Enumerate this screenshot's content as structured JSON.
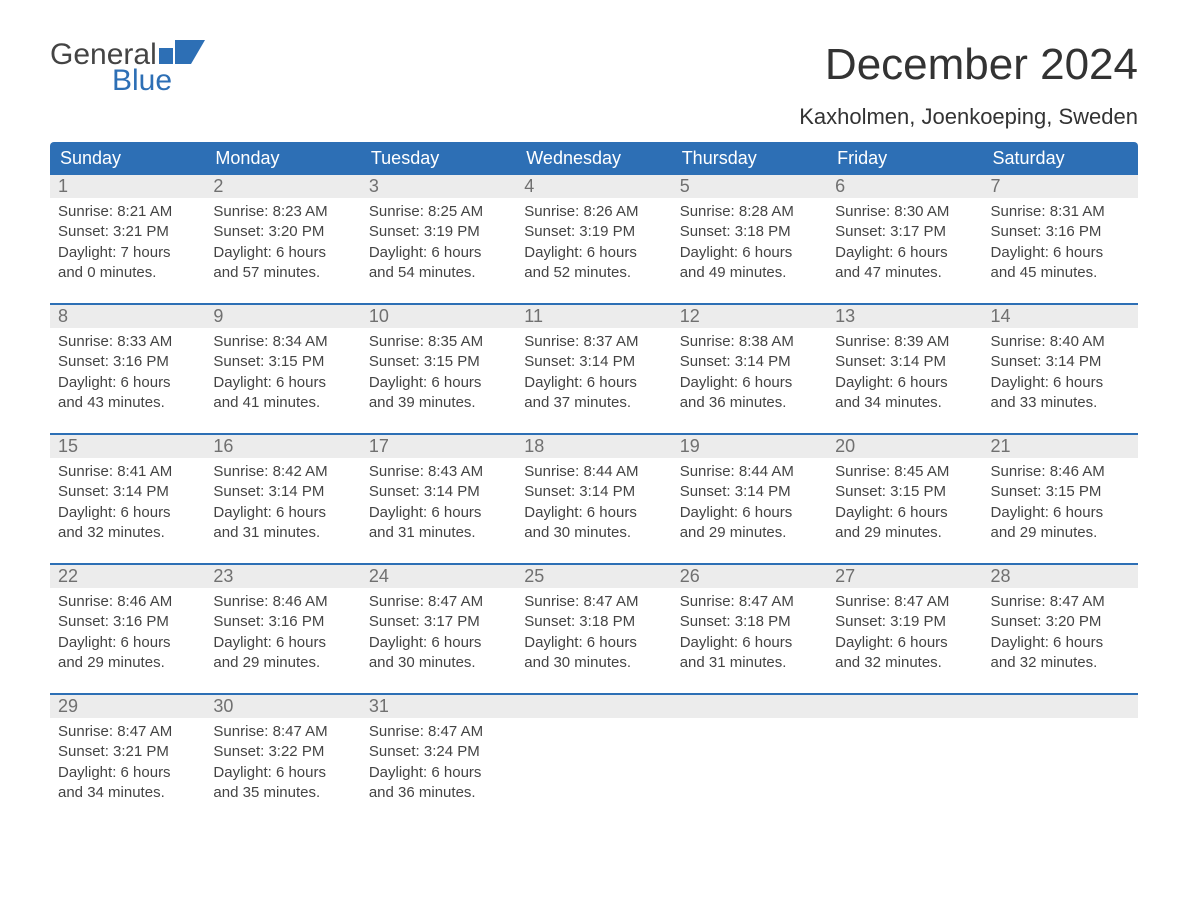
{
  "brand": {
    "general": "General",
    "blue": "Blue",
    "flag_color": "#2d6fb5"
  },
  "header": {
    "month_title": "December 2024",
    "location": "Kaxholmen, Joenkoeping, Sweden"
  },
  "colors": {
    "header_bg": "#2d6fb5",
    "header_text": "#ffffff",
    "day_number_bg": "#ececec",
    "day_number_text": "#707070",
    "body_text": "#444444",
    "week_border": "#2d6fb5",
    "page_bg": "#ffffff"
  },
  "weekdays": [
    "Sunday",
    "Monday",
    "Tuesday",
    "Wednesday",
    "Thursday",
    "Friday",
    "Saturday"
  ],
  "weeks": [
    [
      {
        "n": "1",
        "sunrise": "8:21 AM",
        "sunset": "3:21 PM",
        "dl1": "7 hours",
        "dl2": "and 0 minutes."
      },
      {
        "n": "2",
        "sunrise": "8:23 AM",
        "sunset": "3:20 PM",
        "dl1": "6 hours",
        "dl2": "and 57 minutes."
      },
      {
        "n": "3",
        "sunrise": "8:25 AM",
        "sunset": "3:19 PM",
        "dl1": "6 hours",
        "dl2": "and 54 minutes."
      },
      {
        "n": "4",
        "sunrise": "8:26 AM",
        "sunset": "3:19 PM",
        "dl1": "6 hours",
        "dl2": "and 52 minutes."
      },
      {
        "n": "5",
        "sunrise": "8:28 AM",
        "sunset": "3:18 PM",
        "dl1": "6 hours",
        "dl2": "and 49 minutes."
      },
      {
        "n": "6",
        "sunrise": "8:30 AM",
        "sunset": "3:17 PM",
        "dl1": "6 hours",
        "dl2": "and 47 minutes."
      },
      {
        "n": "7",
        "sunrise": "8:31 AM",
        "sunset": "3:16 PM",
        "dl1": "6 hours",
        "dl2": "and 45 minutes."
      }
    ],
    [
      {
        "n": "8",
        "sunrise": "8:33 AM",
        "sunset": "3:16 PM",
        "dl1": "6 hours",
        "dl2": "and 43 minutes."
      },
      {
        "n": "9",
        "sunrise": "8:34 AM",
        "sunset": "3:15 PM",
        "dl1": "6 hours",
        "dl2": "and 41 minutes."
      },
      {
        "n": "10",
        "sunrise": "8:35 AM",
        "sunset": "3:15 PM",
        "dl1": "6 hours",
        "dl2": "and 39 minutes."
      },
      {
        "n": "11",
        "sunrise": "8:37 AM",
        "sunset": "3:14 PM",
        "dl1": "6 hours",
        "dl2": "and 37 minutes."
      },
      {
        "n": "12",
        "sunrise": "8:38 AM",
        "sunset": "3:14 PM",
        "dl1": "6 hours",
        "dl2": "and 36 minutes."
      },
      {
        "n": "13",
        "sunrise": "8:39 AM",
        "sunset": "3:14 PM",
        "dl1": "6 hours",
        "dl2": "and 34 minutes."
      },
      {
        "n": "14",
        "sunrise": "8:40 AM",
        "sunset": "3:14 PM",
        "dl1": "6 hours",
        "dl2": "and 33 minutes."
      }
    ],
    [
      {
        "n": "15",
        "sunrise": "8:41 AM",
        "sunset": "3:14 PM",
        "dl1": "6 hours",
        "dl2": "and 32 minutes."
      },
      {
        "n": "16",
        "sunrise": "8:42 AM",
        "sunset": "3:14 PM",
        "dl1": "6 hours",
        "dl2": "and 31 minutes."
      },
      {
        "n": "17",
        "sunrise": "8:43 AM",
        "sunset": "3:14 PM",
        "dl1": "6 hours",
        "dl2": "and 31 minutes."
      },
      {
        "n": "18",
        "sunrise": "8:44 AM",
        "sunset": "3:14 PM",
        "dl1": "6 hours",
        "dl2": "and 30 minutes."
      },
      {
        "n": "19",
        "sunrise": "8:44 AM",
        "sunset": "3:14 PM",
        "dl1": "6 hours",
        "dl2": "and 29 minutes."
      },
      {
        "n": "20",
        "sunrise": "8:45 AM",
        "sunset": "3:15 PM",
        "dl1": "6 hours",
        "dl2": "and 29 minutes."
      },
      {
        "n": "21",
        "sunrise": "8:46 AM",
        "sunset": "3:15 PM",
        "dl1": "6 hours",
        "dl2": "and 29 minutes."
      }
    ],
    [
      {
        "n": "22",
        "sunrise": "8:46 AM",
        "sunset": "3:16 PM",
        "dl1": "6 hours",
        "dl2": "and 29 minutes."
      },
      {
        "n": "23",
        "sunrise": "8:46 AM",
        "sunset": "3:16 PM",
        "dl1": "6 hours",
        "dl2": "and 29 minutes."
      },
      {
        "n": "24",
        "sunrise": "8:47 AM",
        "sunset": "3:17 PM",
        "dl1": "6 hours",
        "dl2": "and 30 minutes."
      },
      {
        "n": "25",
        "sunrise": "8:47 AM",
        "sunset": "3:18 PM",
        "dl1": "6 hours",
        "dl2": "and 30 minutes."
      },
      {
        "n": "26",
        "sunrise": "8:47 AM",
        "sunset": "3:18 PM",
        "dl1": "6 hours",
        "dl2": "and 31 minutes."
      },
      {
        "n": "27",
        "sunrise": "8:47 AM",
        "sunset": "3:19 PM",
        "dl1": "6 hours",
        "dl2": "and 32 minutes."
      },
      {
        "n": "28",
        "sunrise": "8:47 AM",
        "sunset": "3:20 PM",
        "dl1": "6 hours",
        "dl2": "and 32 minutes."
      }
    ],
    [
      {
        "n": "29",
        "sunrise": "8:47 AM",
        "sunset": "3:21 PM",
        "dl1": "6 hours",
        "dl2": "and 34 minutes."
      },
      {
        "n": "30",
        "sunrise": "8:47 AM",
        "sunset": "3:22 PM",
        "dl1": "6 hours",
        "dl2": "and 35 minutes."
      },
      {
        "n": "31",
        "sunrise": "8:47 AM",
        "sunset": "3:24 PM",
        "dl1": "6 hours",
        "dl2": "and 36 minutes."
      },
      {
        "n": "",
        "sunrise": "",
        "sunset": "",
        "dl1": "",
        "dl2": ""
      },
      {
        "n": "",
        "sunrise": "",
        "sunset": "",
        "dl1": "",
        "dl2": ""
      },
      {
        "n": "",
        "sunrise": "",
        "sunset": "",
        "dl1": "",
        "dl2": ""
      },
      {
        "n": "",
        "sunrise": "",
        "sunset": "",
        "dl1": "",
        "dl2": ""
      }
    ]
  ],
  "labels": {
    "sunrise_prefix": "Sunrise: ",
    "sunset_prefix": "Sunset: ",
    "daylight_prefix": "Daylight: "
  }
}
